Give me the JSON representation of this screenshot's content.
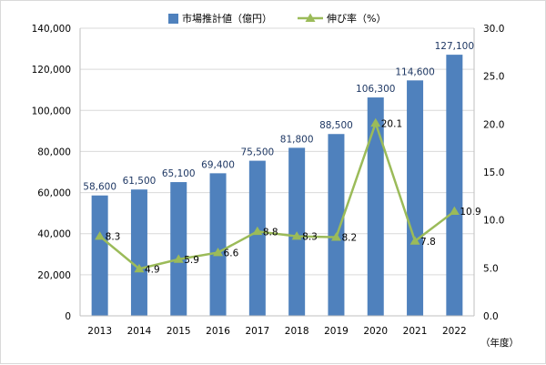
{
  "chart_data": {
    "type": "bar",
    "categories": [
      "2013",
      "2014",
      "2015",
      "2016",
      "2017",
      "2018",
      "2019",
      "2020",
      "2021",
      "2022"
    ],
    "series": [
      {
        "name": "市場推計値（億円）",
        "type": "bar",
        "axis": "left",
        "values": [
          58600,
          61500,
          65100,
          69400,
          75500,
          81800,
          88500,
          106300,
          114600,
          127100
        ],
        "labels": [
          "58,600",
          "61,500",
          "65,100",
          "69,400",
          "75,500",
          "81,800",
          "88,500",
          "106,300",
          "114,600",
          "127,100"
        ],
        "color": "#4f81bd"
      },
      {
        "name": "伸び率（%）",
        "type": "line",
        "axis": "right",
        "values": [
          8.3,
          4.9,
          5.9,
          6.6,
          8.8,
          8.3,
          8.2,
          20.1,
          7.8,
          10.9
        ],
        "labels": [
          "8.3",
          "4.9",
          "5.9",
          "6.6",
          "8.8",
          "8.3",
          "8.2",
          "20.1",
          "7.8",
          "10.9"
        ],
        "color": "#9bbb59"
      }
    ],
    "left_axis": {
      "range": [
        0,
        140000
      ],
      "ticks": [
        0,
        20000,
        40000,
        60000,
        80000,
        100000,
        120000,
        140000
      ],
      "tick_labels": [
        "0",
        "20,000",
        "40,000",
        "60,000",
        "80,000",
        "100,000",
        "120,000",
        "140,000"
      ]
    },
    "right_axis": {
      "range": [
        0,
        30
      ],
      "ticks": [
        0,
        5,
        10,
        15,
        20,
        25,
        30
      ],
      "tick_labels": [
        "0.0",
        "5.0",
        "10.0",
        "15.0",
        "20.0",
        "25.0",
        "30.0"
      ]
    },
    "xlabel": "（年度）",
    "legend_position": "top-center",
    "grid": true
  }
}
